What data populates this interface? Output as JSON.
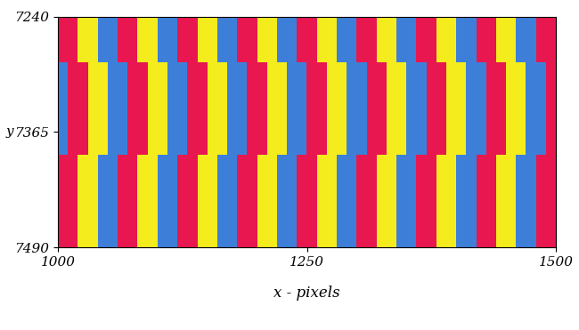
{
  "chart_data": {
    "type": "heatmap",
    "x_label": "x - pixels",
    "y_label": "y",
    "xlim": [
      1000,
      1500
    ],
    "ylim": [
      7490,
      7240
    ],
    "xticks": [
      1000,
      1250,
      1500
    ],
    "yticks": [
      7240,
      7365,
      7490
    ],
    "colors": [
      "#e8174f",
      "#f5ec1e",
      "#3d7fd8"
    ],
    "cells": [
      [
        0,
        0,
        1,
        1,
        2,
        2,
        0,
        0,
        1,
        1,
        2,
        2,
        0,
        0,
        1,
        1,
        2,
        2,
        0,
        0,
        1,
        1,
        2,
        2,
        0,
        0,
        1,
        1,
        2,
        2,
        0,
        0,
        1,
        1,
        2,
        2,
        0,
        0,
        1,
        1,
        2,
        2,
        0,
        0,
        1,
        1,
        2,
        2,
        0,
        0
      ],
      [
        2,
        0,
        0,
        1,
        1,
        2,
        2,
        0,
        0,
        1,
        1,
        2,
        2,
        0,
        0,
        1,
        1,
        2,
        2,
        0,
        0,
        1,
        1,
        2,
        2,
        0,
        0,
        1,
        1,
        2,
        2,
        0,
        0,
        1,
        1,
        2,
        2,
        0,
        0,
        1,
        1,
        2,
        2,
        0,
        0,
        1,
        1,
        2,
        2,
        0
      ],
      [
        2,
        0,
        0,
        1,
        1,
        2,
        2,
        0,
        0,
        1,
        1,
        2,
        2,
        0,
        0,
        1,
        1,
        2,
        2,
        0,
        0,
        1,
        1,
        2,
        2,
        0,
        0,
        1,
        1,
        2,
        2,
        0,
        0,
        1,
        1,
        2,
        2,
        0,
        0,
        1,
        1,
        2,
        2,
        0,
        0,
        1,
        1,
        2,
        2,
        0
      ],
      [
        0,
        0,
        1,
        1,
        2,
        2,
        0,
        0,
        1,
        1,
        2,
        2,
        0,
        0,
        1,
        1,
        2,
        2,
        0,
        0,
        1,
        1,
        2,
        2,
        0,
        0,
        1,
        1,
        2,
        2,
        0,
        0,
        1,
        1,
        2,
        2,
        0,
        0,
        1,
        1,
        2,
        2,
        0,
        0,
        1,
        1,
        2,
        2,
        0,
        0
      ],
      [
        0,
        0,
        1,
        1,
        2,
        2,
        0,
        0,
        1,
        1,
        2,
        2,
        0,
        0,
        1,
        1,
        2,
        2,
        0,
        0,
        1,
        1,
        2,
        2,
        0,
        0,
        1,
        1,
        2,
        2,
        0,
        0,
        1,
        1,
        2,
        2,
        0,
        0,
        1,
        1,
        2,
        2,
        0,
        0,
        1,
        1,
        2,
        2,
        0,
        0
      ]
    ],
    "grid": false
  }
}
